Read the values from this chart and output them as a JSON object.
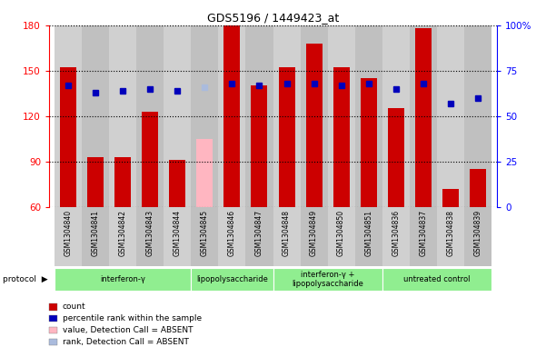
{
  "title": "GDS5196 / 1449423_at",
  "samples": [
    "GSM1304840",
    "GSM1304841",
    "GSM1304842",
    "GSM1304843",
    "GSM1304844",
    "GSM1304845",
    "GSM1304846",
    "GSM1304847",
    "GSM1304848",
    "GSM1304849",
    "GSM1304850",
    "GSM1304851",
    "GSM1304836",
    "GSM1304837",
    "GSM1304838",
    "GSM1304839"
  ],
  "counts": [
    152,
    93,
    93,
    123,
    91,
    null,
    180,
    140,
    152,
    168,
    152,
    145,
    125,
    178,
    72,
    85
  ],
  "ranks": [
    67,
    63,
    64,
    65,
    64,
    null,
    68,
    67,
    68,
    68,
    67,
    68,
    65,
    68,
    57,
    60
  ],
  "absent_count": [
    null,
    null,
    null,
    null,
    null,
    105,
    null,
    null,
    null,
    null,
    null,
    null,
    null,
    null,
    null,
    null
  ],
  "absent_rank": [
    null,
    null,
    null,
    null,
    null,
    66,
    null,
    null,
    null,
    null,
    null,
    null,
    null,
    null,
    null,
    null
  ],
  "protocols": [
    {
      "label": "interferon-γ",
      "start": 0,
      "end": 5
    },
    {
      "label": "lipopolysaccharide",
      "start": 5,
      "end": 8
    },
    {
      "label": "interferon-γ +\nlipopolysaccharide",
      "start": 8,
      "end": 12
    },
    {
      "label": "untreated control",
      "start": 12,
      "end": 16
    }
  ],
  "ylim_left": [
    60,
    180
  ],
  "ylim_right": [
    0,
    100
  ],
  "yticks_left": [
    60,
    90,
    120,
    150,
    180
  ],
  "yticks_right": [
    0,
    25,
    50,
    75,
    100
  ],
  "bar_color": "#CC0000",
  "absent_bar_color": "#FFB6C1",
  "rank_color": "#0000BB",
  "absent_rank_color": "#AABBDD",
  "proto_color": "#90EE90",
  "col_colors": [
    "#D0D0D0",
    "#C0C0C0"
  ],
  "legend_items": [
    {
      "label": "count",
      "color": "#CC0000"
    },
    {
      "label": "percentile rank within the sample",
      "color": "#0000BB"
    },
    {
      "label": "value, Detection Call = ABSENT",
      "color": "#FFB6C1"
    },
    {
      "label": "rank, Detection Call = ABSENT",
      "color": "#AABBDD"
    }
  ]
}
